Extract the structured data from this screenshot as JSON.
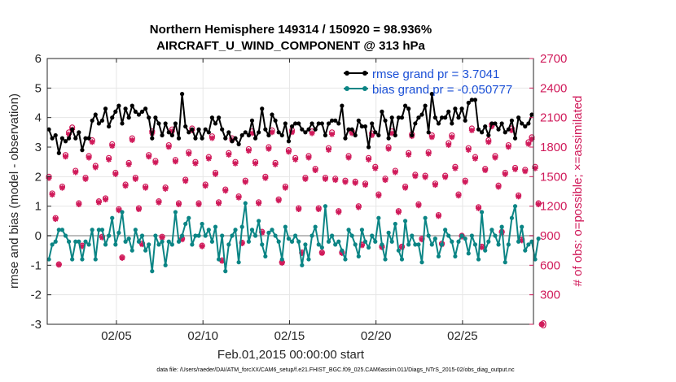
{
  "chart_data": {
    "type": "line",
    "title": "Northern Hemisphere 149314 / 150920 = 98.936%",
    "subtitle": "AIRCRAFT_U_WIND_COMPONENT @ 313 hPa",
    "xlabel": "Feb.01,2015 00:00:00 start",
    "ylabel_left": "rmse and bias (model - observation)",
    "ylabel_right": "# of obs: o=possible; ×=assimilated",
    "footnote": "data file: /Users/raeder/DAI/ATM_forcXX/CAM6_setup/f.e21.FHIST_BGC.f09_025.CAM6assim.011/Diags_NTrS_2015-02/obs_diag_output.nc",
    "xlim": [
      1,
      29.1
    ],
    "x_ticks": [
      5,
      10,
      15,
      20,
      25
    ],
    "x_tick_labels": [
      "02/05",
      "02/10",
      "02/15",
      "02/20",
      "02/25"
    ],
    "ylim_left": [
      -3,
      6
    ],
    "y_ticks_left": [
      -3,
      -2,
      -1,
      0,
      1,
      2,
      3,
      4,
      5,
      6
    ],
    "y_tick_labels_left": [
      "-3",
      "-2",
      "-1",
      "0",
      "1",
      "2",
      "3",
      "4",
      "5",
      "6"
    ],
    "ylim_right": [
      0,
      2700
    ],
    "y_ticks_right": [
      0,
      300,
      600,
      900,
      1200,
      1500,
      1800,
      2100,
      2400,
      2700
    ],
    "y_tick_labels_right": [
      "0",
      "300",
      "600",
      "900",
      "1200",
      "1500",
      "1800",
      "2100",
      "2400",
      "2700"
    ],
    "grid": true,
    "legend_position": "top-right",
    "series": [
      {
        "name": "rmse",
        "legend_label": "rmse grand pr = 3.7041",
        "color": "#000000",
        "values": [
          3.6,
          3.3,
          3.4,
          2.8,
          3.3,
          3.2,
          3.3,
          3.6,
          3.3,
          3.5,
          2.9,
          3.3,
          3.3,
          3.9,
          4.1,
          3.8,
          3.9,
          4.3,
          3.7,
          4.0,
          4.2,
          4.4,
          3.8,
          4.3,
          4.0,
          4.4,
          4.2,
          4.1,
          4.2,
          4.3,
          4.0,
          3.3,
          4.0,
          3.8,
          3.4,
          3.8,
          3.5,
          3.4,
          3.8,
          3.3,
          4.8,
          3.7,
          3.5,
          3.6,
          3.3,
          3.6,
          3.3,
          3.6,
          3.5,
          4.0,
          3.8,
          4.0,
          3.6,
          3.3,
          3.5,
          3.2,
          3.3,
          3.1,
          3.4,
          3.5,
          3.4,
          3.9,
          3.3,
          3.5,
          4.3,
          3.6,
          3.4,
          4.1,
          3.9,
          3.5,
          3.4,
          3.8,
          3.2,
          3.7,
          3.8,
          3.8,
          3.6,
          3.5,
          3.6,
          3.8,
          3.6,
          3.8,
          3.8,
          3.4,
          3.8,
          3.9,
          3.9,
          3.8,
          4.4,
          3.3,
          3.6,
          3.6,
          3.4,
          3.9,
          3.7,
          3.7,
          3.0,
          3.8,
          3.5,
          3.4,
          4.2,
          3.9,
          3.3,
          4.0,
          3.4,
          4.0,
          4.0,
          4.4,
          4.3,
          3.4,
          3.8,
          4.0,
          4.1,
          4.4,
          3.5,
          4.8,
          4.0,
          3.8,
          4.0,
          4.0,
          4.2,
          3.8,
          4.3,
          4.0,
          4.3,
          3.9,
          4.5,
          4.6,
          4.6,
          3.6,
          3.5,
          3.7,
          3.4,
          3.8,
          3.8,
          3.6,
          3.8,
          3.5,
          3.6,
          3.9,
          3.3,
          4.0,
          3.8,
          3.7,
          3.8,
          4.1
        ]
      },
      {
        "name": "bias",
        "legend_label": "bias grand pr = -0.050777",
        "color": "#0b8585",
        "values": [
          -0.8,
          -0.3,
          -0.2,
          0.2,
          0.2,
          0.0,
          -0.2,
          -0.8,
          -0.2,
          -0.2,
          -0.8,
          -0.2,
          -0.3,
          0.2,
          -0.8,
          0.2,
          0.2,
          -0.3,
          0.0,
          0.6,
          -0.3,
          0.1,
          0.8,
          -0.2,
          -0.1,
          -0.5,
          0.2,
          -0.2,
          0.0,
          -0.5,
          -0.3,
          -1.2,
          0.0,
          -0.3,
          -0.2,
          -1.0,
          -0.2,
          -0.3,
          0.8,
          -0.2,
          0.0,
          0.4,
          0.6,
          -0.3,
          0.0,
          0.0,
          0.4,
          0.0,
          0.2,
          -0.2,
          0.3,
          -0.8,
          0.0,
          -1.2,
          -0.3,
          0.0,
          0.2,
          -0.9,
          0.3,
          1.1,
          -0.2,
          0.2,
          0.0,
          0.5,
          -0.3,
          -0.7,
          0.1,
          0.2,
          0.0,
          -0.2,
          -0.8,
          0.3,
          -0.1,
          -0.2,
          0.0,
          -0.2,
          -1.0,
          -0.3,
          -0.8,
          0.0,
          0.3,
          -0.3,
          -0.4,
          1.0,
          -0.2,
          0.0,
          -0.3,
          -0.2,
          -0.5,
          -0.8,
          0.2,
          0.0,
          -0.3,
          -0.7,
          0.2,
          -0.2,
          -0.4,
          0.0,
          -0.2,
          0.6,
          -0.3,
          -0.8,
          0.1,
          -0.2,
          0.4,
          -0.5,
          -0.8,
          0.5,
          -0.3,
          0.0,
          -0.3,
          -0.3,
          -0.9,
          0.6,
          0.0,
          -0.3,
          -0.1,
          -0.7,
          -0.3,
          0.2,
          0.0,
          -0.2,
          -0.7,
          -0.2,
          0.0,
          -0.1,
          -0.6,
          0.0,
          -0.3,
          -0.8,
          0.8,
          -0.5,
          -0.2,
          0.2,
          0.0,
          -0.3,
          0.3,
          -0.9,
          -0.3,
          0.6,
          1.0,
          -0.2,
          0.3,
          -0.5,
          -0.3,
          -0.2,
          -0.8,
          -0.1
        ]
      }
    ],
    "obs_counts": {
      "possible_color": "#d01a5a",
      "assimilated_color": "#d01a5a",
      "day_cycle_phase4_phase0_fraction": 0.61,
      "possible": [
        1500,
        1330,
        1080,
        610,
        1400,
        1720,
        1950,
        2000,
        1560,
        1230,
        800,
        1490,
        1710,
        1870,
        1610,
        1250,
        890,
        1280,
        1690,
        1830,
        1540,
        1170,
        680,
        1420,
        1640,
        1890,
        1490,
        1180,
        820,
        1400,
        1720,
        1960,
        1660,
        1250,
        890,
        1390,
        1820,
        1980,
        1670,
        1230,
        870,
        1470,
        1750,
        1990,
        1650,
        1230,
        800,
        1420,
        1700,
        1910,
        1540,
        1240,
        650,
        1370,
        1740,
        1890,
        1650,
        1300,
        830,
        1460,
        1780,
        1960,
        1650,
        1240,
        940,
        1500,
        1800,
        1970,
        1640,
        1270,
        630,
        1400,
        1770,
        1970,
        1690,
        1180,
        730,
        1490,
        1710,
        1960,
        1580,
        1180,
        730,
        1490,
        1790,
        1950,
        1480,
        1150,
        730,
        1460,
        1710,
        1960,
        1450,
        1200,
        810,
        1430,
        1690,
        1940,
        1600,
        1320,
        790,
        1480,
        1800,
        1960,
        1560,
        1150,
        790,
        1400,
        1740,
        1930,
        1520,
        1220,
        870,
        1510,
        1750,
        1920,
        1430,
        1110,
        820,
        1510,
        1840,
        1920,
        1600,
        1320,
        900,
        1460,
        1790,
        1990,
        1700,
        1190,
        790,
        1580,
        1870,
        2030,
        1710,
        1410,
        940,
        1540,
        1820,
        1990,
        1590,
        1310,
        860,
        1570,
        1850,
        1900,
        1600,
        1230,
        0
      ]
    }
  }
}
